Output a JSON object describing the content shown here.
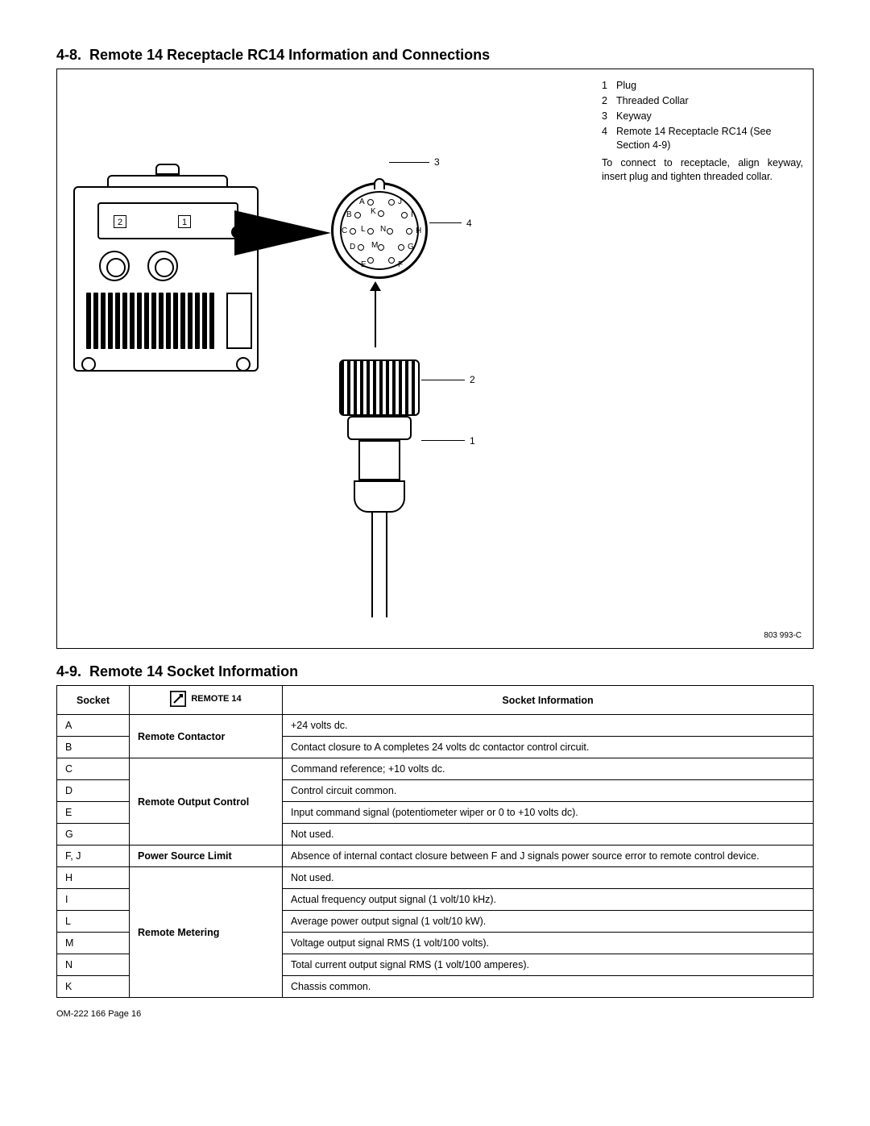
{
  "section48": {
    "number": "4-8.",
    "title": "Remote 14 Receptacle RC14 Information and Connections"
  },
  "legend": {
    "items": [
      {
        "n": "1",
        "t": "Plug"
      },
      {
        "n": "2",
        "t": "Threaded Collar"
      },
      {
        "n": "3",
        "t": "Keyway"
      },
      {
        "n": "4",
        "t": "Remote 14 Receptacle RC14 (See Section 4-9)"
      }
    ],
    "note": "To connect to receptacle, align keyway, insert plug and tighten threaded collar."
  },
  "figref": "803 993-C",
  "callouts": {
    "c1": "1",
    "c2": "2",
    "c3": "3",
    "c4": "4"
  },
  "boxed": {
    "b1": "1",
    "b2": "2"
  },
  "pins": {
    "A": "A",
    "B": "B",
    "C": "C",
    "D": "D",
    "E": "E",
    "F": "F",
    "G": "G",
    "H": "H",
    "I": "I",
    "J": "J",
    "K": "K",
    "L": "L",
    "M": "M",
    "N": "N"
  },
  "section49": {
    "number": "4-9.",
    "title": "Remote 14 Socket Information"
  },
  "table": {
    "headers": {
      "socket": "Socket",
      "remote": "REMOTE  14",
      "info": "Socket Information"
    },
    "groups": [
      {
        "label": "Remote Contactor",
        "rows": [
          {
            "s": "A",
            "i": "+24 volts dc."
          },
          {
            "s": "B",
            "i": "Contact closure to A completes 24 volts dc contactor control circuit."
          }
        ]
      },
      {
        "label": "Remote Output Control",
        "rows": [
          {
            "s": "C",
            "i": "Command reference; +10 volts dc."
          },
          {
            "s": "D",
            "i": "Control circuit common."
          },
          {
            "s": "E",
            "i": "Input command signal (potentiometer wiper or 0 to +10 volts dc)."
          },
          {
            "s": "G",
            "i": "Not used."
          }
        ]
      },
      {
        "label": "Power Source Limit",
        "rows": [
          {
            "s": "F, J",
            "i": "Absence of internal contact closure between F and J signals power source error to remote control device."
          }
        ]
      },
      {
        "label": "Remote Metering",
        "rows": [
          {
            "s": "H",
            "i": "Not used."
          },
          {
            "s": "I",
            "i": "Actual frequency output signal (1 volt/10 kHz)."
          },
          {
            "s": "L",
            "i": "Average power output signal (1 volt/10 kW)."
          },
          {
            "s": "M",
            "i": "Voltage output signal RMS (1 volt/100 volts)."
          },
          {
            "s": "N",
            "i": "Total current output signal RMS (1 volt/100 amperes)."
          },
          {
            "s": "K",
            "i": "Chassis common."
          }
        ]
      }
    ]
  },
  "footer": "OM-222 166 Page 16"
}
